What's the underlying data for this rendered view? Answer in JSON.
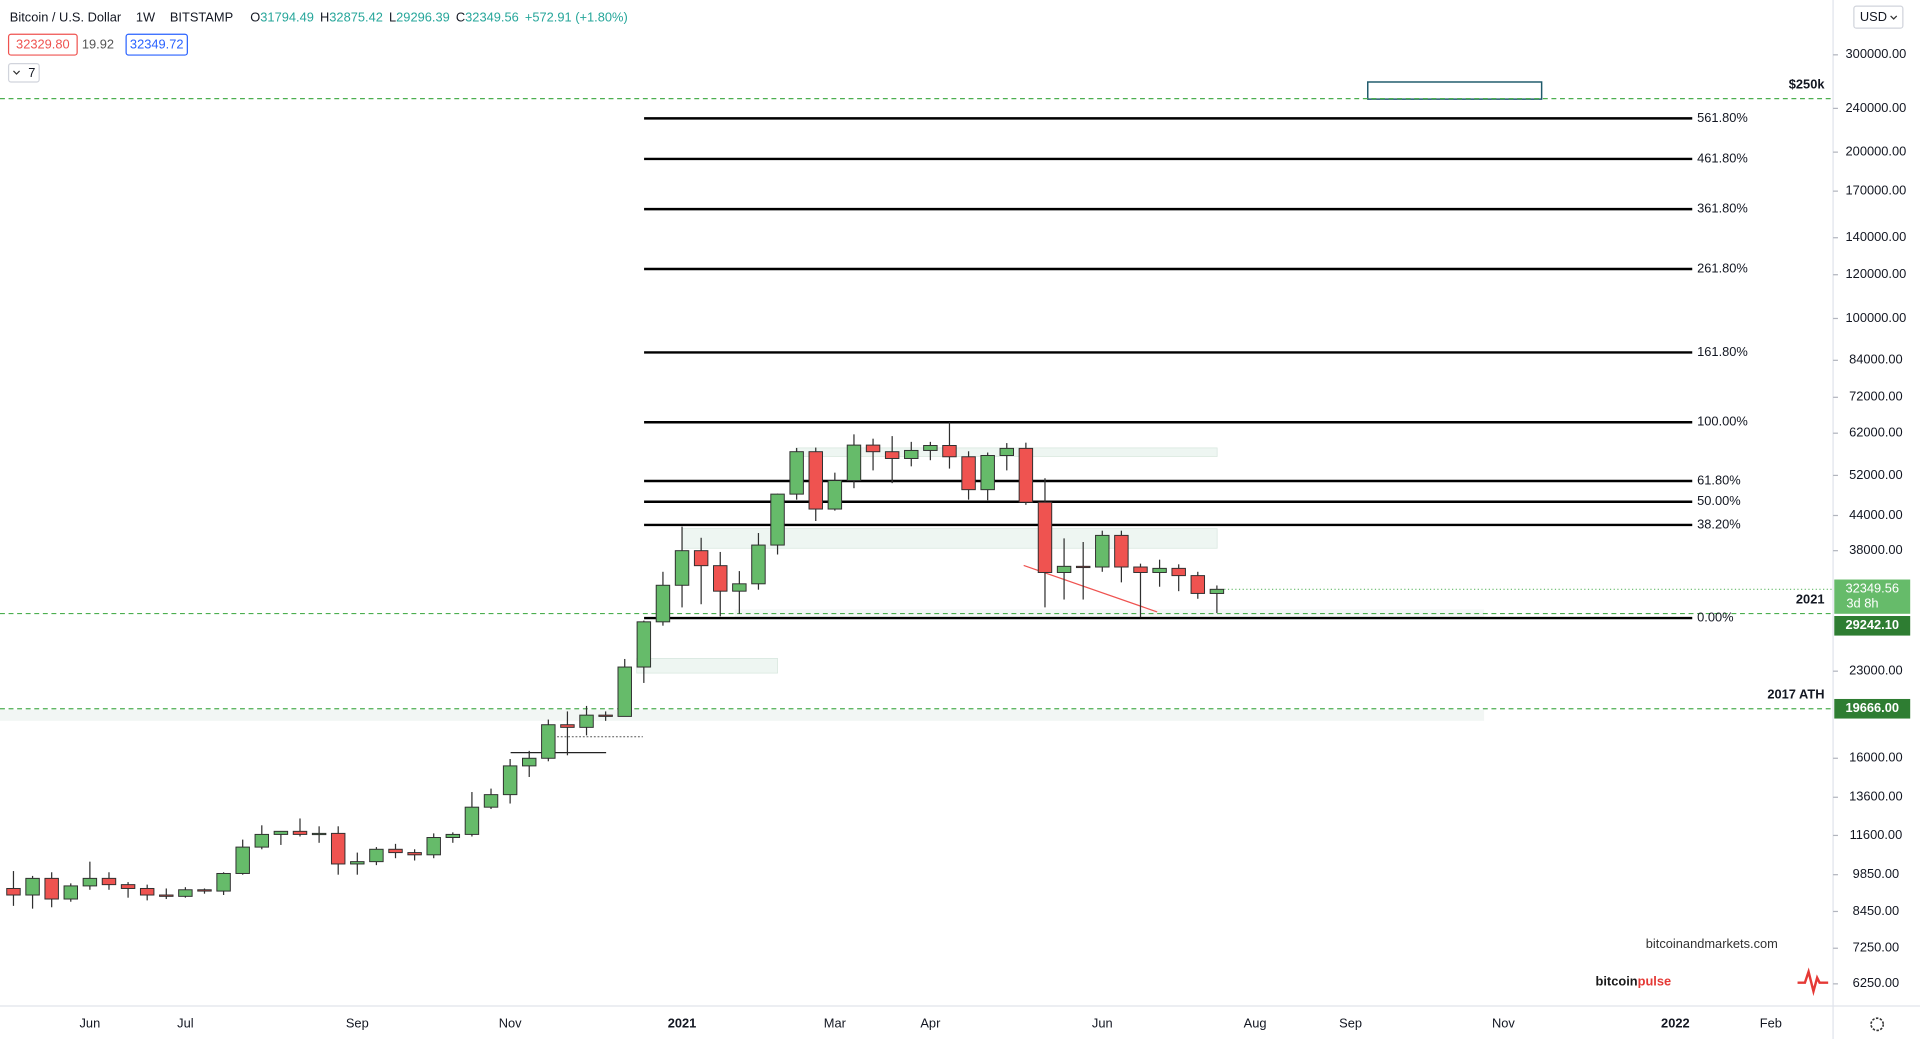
{
  "chart_data": {
    "type": "candlestick",
    "header": {
      "symbol": "Bitcoin / U.S. Dollar",
      "interval": "1W",
      "exchange": "BITSTAMP",
      "ohlc": [
        {
          "key": "O",
          "value": "31794.49"
        },
        {
          "key": "H",
          "value": "32875.42"
        },
        {
          "key": "L",
          "value": "29296.39"
        },
        {
          "key": "C",
          "value": "32349.56"
        }
      ],
      "change": "+572.91 (+1.80%)",
      "sell": "32329.80",
      "spread": "19.92",
      "buy": "32349.72",
      "indicators": "7"
    },
    "currency": "USD",
    "categories": [
      null,
      null,
      null,
      null,
      "Jun",
      null,
      null,
      null,
      null,
      "Jul",
      null,
      null,
      null,
      null,
      null,
      null,
      null,
      null,
      "Sep",
      null,
      null,
      null,
      null,
      null,
      null,
      null,
      "Nov",
      null,
      null,
      null,
      null,
      null,
      null,
      null,
      null,
      "2021",
      null,
      null,
      null,
      null,
      null,
      null,
      null,
      "Mar",
      null,
      null,
      null,
      null,
      "Apr",
      null,
      null,
      null,
      null,
      null,
      null,
      null,
      null,
      "Jun",
      null,
      null,
      null,
      null,
      null,
      null,
      null,
      "Aug",
      null,
      null,
      null,
      null,
      "Sep",
      null,
      null,
      null,
      null,
      null,
      null,
      null,
      "Nov",
      null,
      null,
      null,
      null,
      null,
      null,
      null,
      null,
      "2022",
      null,
      null,
      null,
      null,
      "Feb"
    ],
    "open": [
      9300,
      9050,
      9700,
      8900,
      9400,
      9700,
      9450,
      9300,
      9050,
      9000,
      9250,
      9200,
      9900,
      11050,
      11650,
      11800,
      11650,
      11700,
      10300,
      10400,
      10950,
      10800,
      10700,
      11500,
      11650,
      13050,
      13750,
      15500,
      16000,
      18400,
      18200,
      19150,
      19050,
      23400,
      28250,
      32900,
      38000,
      35700,
      32100,
      33100,
      38900,
      48100,
      57400,
      45200,
      50900,
      59000,
      57400,
      55800,
      57700,
      58900,
      56200,
      49000,
      56500,
      58200,
      46500,
      34700,
      35600,
      35500,
      40500,
      35500,
      34700,
      35300,
      34250,
      31794.49,
      null,
      null,
      null,
      null,
      null,
      null,
      null,
      null,
      null,
      null,
      null,
      null,
      null,
      null,
      null,
      null,
      null,
      null,
      null,
      null,
      null,
      null,
      null,
      null,
      null,
      null,
      null,
      null,
      null
    ],
    "high": [
      10000,
      9800,
      9950,
      9500,
      10400,
      9950,
      9550,
      9450,
      9300,
      9350,
      9300,
      9950,
      11400,
      12100,
      11800,
      12450,
      12050,
      12050,
      10800,
      11050,
      11200,
      10950,
      11700,
      11750,
      13900,
      14100,
      15950,
      16500,
      18800,
      19450,
      19900,
      19450,
      24200,
      28400,
      34800,
      42000,
      40100,
      37800,
      34900,
      40900,
      48200,
      58300,
      58400,
      52600,
      61700,
      60600,
      61250,
      59800,
      59800,
      64900,
      57500,
      57200,
      59500,
      59600,
      51400,
      40000,
      39400,
      41300,
      41300,
      36000,
      36600,
      35900,
      34800,
      32875.42,
      null,
      null,
      null,
      null,
      null,
      null,
      null,
      null,
      null,
      null,
      null,
      null,
      null,
      null,
      null,
      null,
      null,
      null,
      null,
      null,
      null,
      null,
      null,
      null,
      null,
      null,
      null,
      null,
      null
    ],
    "low": [
      8650,
      8550,
      8600,
      8800,
      9250,
      9250,
      8950,
      8850,
      8900,
      8950,
      9100,
      9050,
      9850,
      10950,
      11150,
      11550,
      11250,
      9850,
      9850,
      10250,
      10550,
      10450,
      10550,
      11250,
      11550,
      12950,
      13250,
      14800,
      15800,
      16200,
      17600,
      18700,
      19050,
      21900,
      27800,
      30000,
      30400,
      28900,
      29200,
      32300,
      37400,
      47000,
      43000,
      44900,
      49300,
      53100,
      50350,
      54000,
      55400,
      53500,
      47000,
      46900,
      53100,
      46000,
      30000,
      31000,
      31000,
      34800,
      33300,
      28800,
      32700,
      32100,
      31100,
      29296.39,
      null,
      null,
      null,
      null,
      null,
      null,
      null,
      null,
      null,
      null,
      null,
      null,
      null,
      null,
      null,
      null,
      null,
      null,
      null,
      null,
      null,
      null,
      null,
      null,
      null,
      null,
      null,
      null,
      null
    ],
    "close": [
      9050,
      9700,
      8900,
      9400,
      9700,
      9450,
      9300,
      9050,
      9000,
      9250,
      9200,
      9900,
      11050,
      11650,
      11800,
      11650,
      11700,
      10300,
      10400,
      10950,
      10800,
      10700,
      11500,
      11650,
      13050,
      13750,
      15500,
      16000,
      18400,
      18200,
      19150,
      19050,
      23400,
      28250,
      32900,
      38000,
      35700,
      32100,
      33100,
      38900,
      48100,
      57400,
      45200,
      50900,
      59000,
      57400,
      55800,
      57700,
      58900,
      56200,
      49000,
      56500,
      58200,
      46500,
      34700,
      35600,
      35500,
      40500,
      35500,
      34700,
      35300,
      34250,
      31800,
      32349.56,
      null,
      null,
      null,
      null,
      null,
      null,
      null,
      null,
      null,
      null,
      null,
      null,
      null,
      null,
      null,
      null,
      null,
      null,
      null,
      null,
      null,
      null,
      null,
      null,
      null,
      null,
      null,
      null,
      null
    ],
    "up_color": "#66bb6a",
    "down_color": "#ef5350",
    "border_color": "#2f2f2f",
    "countdown": "3d 8h",
    "log_scale": true,
    "grid": false,
    "ylim": [
      5700,
      377000
    ],
    "yticks": [
      {
        "value": 300000,
        "label": "300000.00"
      },
      {
        "value": 240000,
        "label": "240000.00"
      },
      {
        "value": 200000,
        "label": "200000.00"
      },
      {
        "value": 170000,
        "label": "170000.00"
      },
      {
        "value": 140000,
        "label": "140000.00"
      },
      {
        "value": 120000,
        "label": "120000.00"
      },
      {
        "value": 100000,
        "label": "100000.00"
      },
      {
        "value": 84000,
        "label": "84000.00"
      },
      {
        "value": 72000,
        "label": "72000.00"
      },
      {
        "value": 62000,
        "label": "62000.00"
      },
      {
        "value": 52000,
        "label": "52000.00"
      },
      {
        "value": 44000,
        "label": "44000.00"
      },
      {
        "value": 38000,
        "label": "38000.00"
      },
      {
        "value": 23000,
        "label": "23000.00"
      },
      {
        "value": 16000,
        "label": "16000.00"
      },
      {
        "value": 13600,
        "label": "13600.00"
      },
      {
        "value": 11600,
        "label": "11600.00"
      },
      {
        "value": 9850,
        "label": "9850.00"
      },
      {
        "value": 8450,
        "label": "8450.00"
      },
      {
        "value": 7250,
        "label": "7250.00"
      },
      {
        "value": 6250,
        "label": "6250.00"
      }
    ],
    "fib_levels": [
      {
        "label": "561.80%",
        "value": 230200
      },
      {
        "label": "461.80%",
        "value": 194400
      },
      {
        "label": "361.80%",
        "value": 157700
      },
      {
        "label": "261.80%",
        "value": 122900
      },
      {
        "label": "161.80%",
        "value": 86800
      },
      {
        "label": "100.00%",
        "value": 64900
      },
      {
        "label": "61.80%",
        "value": 50800
      },
      {
        "label": "50.00%",
        "value": 46600
      },
      {
        "label": "38.20%",
        "value": 42300
      },
      {
        "label": "0.00%",
        "value": 28700
      }
    ],
    "hlines": [
      {
        "label": "$250k",
        "value": 250000
      },
      {
        "label": "2021",
        "value": 29242.1,
        "price_label": "29242.10"
      },
      {
        "label": "2017 ATH",
        "value": 19666,
        "price_label": "19666.00"
      }
    ],
    "hline_color": "#4caf50",
    "tag_color": "#2e7d32",
    "watermark": {
      "site": "bitcoinandmarkets.com",
      "logo_a": "bitcoin",
      "logo_b": "pulse"
    }
  }
}
